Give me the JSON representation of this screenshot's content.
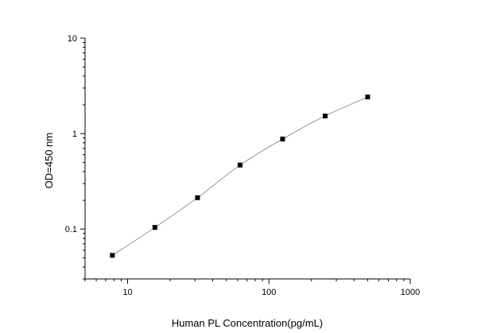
{
  "chart_data": {
    "type": "scatter",
    "xlabel": "Human PL Concentration(pg/mL)",
    "ylabel": "OD=450 nm",
    "x_scale": "log",
    "y_scale": "log",
    "xlim": [
      5,
      1000
    ],
    "ylim": [
      0.03,
      10
    ],
    "x_ticks": [
      {
        "value": 10,
        "label": "10"
      },
      {
        "value": 100,
        "label": "100"
      },
      {
        "value": 1000,
        "label": "1000"
      }
    ],
    "y_ticks": [
      {
        "value": 0.1,
        "label": "0.1"
      },
      {
        "value": 1,
        "label": "1"
      },
      {
        "value": 10,
        "label": "10"
      }
    ],
    "grid": false,
    "series": [
      {
        "x": [
          7.8,
          15.6,
          31.25,
          62.5,
          125,
          250,
          500
        ],
        "y": [
          0.053,
          0.104,
          0.213,
          0.468,
          0.878,
          1.53,
          2.42
        ]
      }
    ],
    "colors": {
      "marker": "#000000",
      "line": "#808080"
    }
  }
}
